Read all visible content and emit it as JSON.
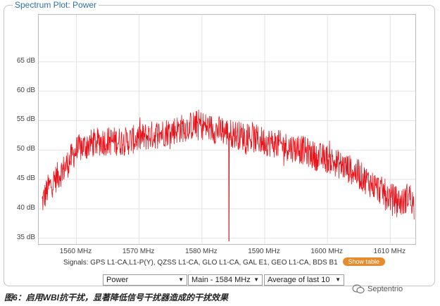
{
  "panel": {
    "title": "Spectrum Plot: Power"
  },
  "chart_data": {
    "type": "line",
    "xlim": [
      1554,
      1614
    ],
    "ylim": [
      34,
      73
    ],
    "xticks": [
      1560,
      1570,
      1580,
      1590,
      1600,
      1610
    ],
    "xtick_labels": [
      "1560 MHz",
      "1570 MHz",
      "1580 MHz",
      "1590 MHz",
      "1600 MHz",
      "1610 MHz"
    ],
    "yticks": [
      35,
      40,
      45,
      50,
      55,
      60,
      65
    ],
    "ytick_labels": [
      "35 dB",
      "40 dB",
      "45 dB",
      "50 dB",
      "55 dB",
      "60 dB",
      "65 dB"
    ],
    "grid": true,
    "line_color": "#e8141b",
    "envelope": {
      "x": [
        1554.5,
        1555.5,
        1557,
        1558.5,
        1560,
        1562,
        1564,
        1566,
        1568,
        1570,
        1572,
        1574,
        1576,
        1578,
        1579.5,
        1580.5,
        1582,
        1584,
        1586,
        1588,
        1590,
        1592,
        1594,
        1596,
        1598,
        1600,
        1602,
        1604,
        1606,
        1608,
        1610,
        1612,
        1613,
        1613.8
      ],
      "y": [
        41,
        43.5,
        45.5,
        47.5,
        50,
        51,
        51.5,
        51.5,
        51.5,
        52,
        52.5,
        53,
        53.5,
        54,
        54.5,
        54,
        53.5,
        53,
        52.5,
        52,
        51.5,
        51,
        50.5,
        50,
        49,
        48.5,
        47.5,
        46.5,
        45,
        43.5,
        42,
        41,
        42.5,
        40.5
      ]
    },
    "noise_amplitude_db": 2.5,
    "notch": {
      "x": 1584.3,
      "y": 34.5
    },
    "signals_label": "Signals: GPS L1-CA,L1-P(Y), QZSS L1-CA, GLO L1-CA, GAL E1, GEO L1-CA, BDS B1"
  },
  "controls": {
    "show_table": "Show table",
    "dropdown_measure": "Power",
    "dropdown_band": "Main - 1584 MHz",
    "dropdown_avg": "Average of last 10"
  },
  "caption": "图6：启用WBI抗干扰，显著降低信号干扰器造成的干扰效果",
  "watermark": "Septentrio"
}
